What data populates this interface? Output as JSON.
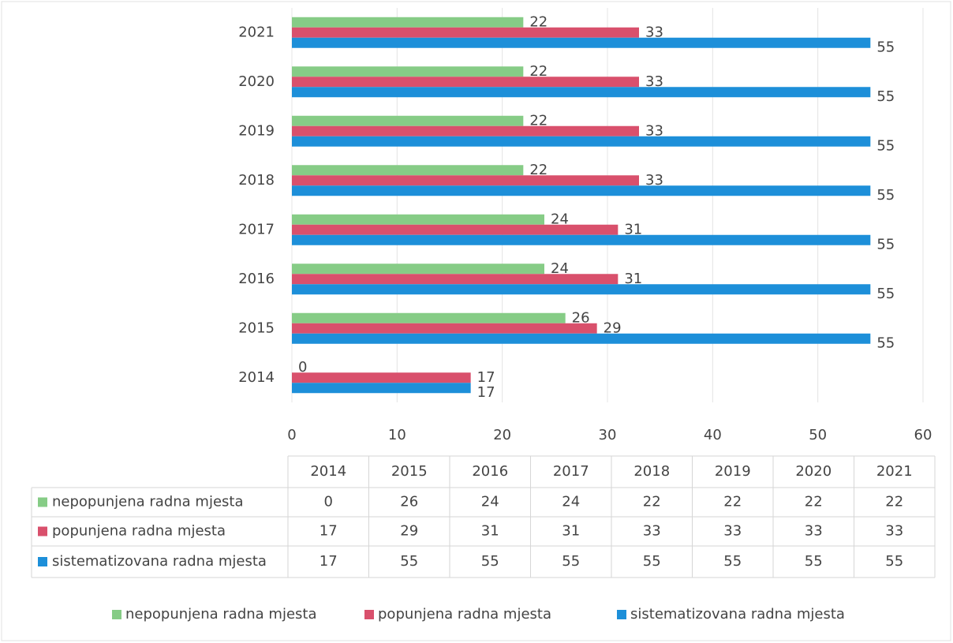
{
  "chart_data": {
    "type": "hbar",
    "categories": [
      "2014",
      "2015",
      "2016",
      "2017",
      "2018",
      "2019",
      "2020",
      "2021"
    ],
    "series": [
      {
        "name": "nepopunjena radna mjesta",
        "color": "#86cc86",
        "values": [
          0,
          26,
          24,
          24,
          22,
          22,
          22,
          22
        ]
      },
      {
        "name": "popunjena radna mjesta",
        "color": "#d9506c",
        "values": [
          17,
          29,
          31,
          31,
          33,
          33,
          33,
          33
        ]
      },
      {
        "name": "sistematizovana radna mjesta",
        "color": "#1d8fd9",
        "values": [
          17,
          55,
          55,
          55,
          55,
          55,
          55,
          55
        ]
      }
    ],
    "xlim": [
      0,
      60
    ],
    "xticks": [
      0,
      10,
      20,
      30,
      40,
      50,
      60
    ],
    "grid": true,
    "legend": "bottom",
    "data_table": true
  }
}
